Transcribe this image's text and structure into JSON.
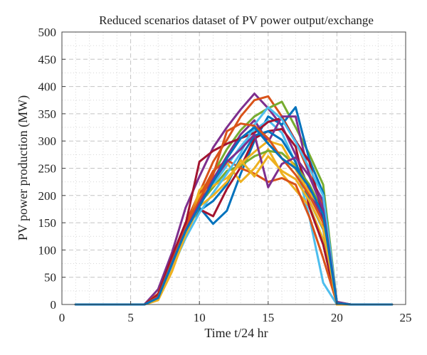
{
  "chart_data": {
    "type": "line",
    "title": "Reduced scenarios dataset of PV power output/exchange",
    "xlabel": "Time t/24 hr",
    "ylabel": "PV power production (MW)",
    "xlim": [
      0,
      25
    ],
    "ylim": [
      0,
      500
    ],
    "xticks": [
      0,
      5,
      10,
      15,
      20,
      25
    ],
    "yticks": [
      0,
      50,
      100,
      150,
      200,
      250,
      300,
      350,
      400,
      450,
      500
    ],
    "grid": true,
    "legend": "none",
    "x": [
      1,
      2,
      3,
      4,
      5,
      6,
      7,
      8,
      9,
      10,
      11,
      12,
      13,
      14,
      15,
      16,
      17,
      18,
      19,
      20,
      21,
      22,
      23,
      24
    ],
    "series": [
      {
        "color": "#7e2f8e",
        "values": [
          0,
          0,
          0,
          0,
          0,
          0,
          28,
          95,
          178,
          235,
          288,
          325,
          358,
          387,
          360,
          328,
          275,
          210,
          155,
          5,
          0,
          0,
          0,
          0
        ]
      },
      {
        "color": "#d95319",
        "values": [
          0,
          0,
          0,
          0,
          0,
          0,
          20,
          85,
          150,
          205,
          262,
          302,
          345,
          375,
          382,
          345,
          300,
          240,
          180,
          3,
          0,
          0,
          0,
          0
        ]
      },
      {
        "color": "#77ac30",
        "values": [
          0,
          0,
          0,
          0,
          0,
          0,
          12,
          75,
          138,
          190,
          240,
          285,
          320,
          345,
          360,
          372,
          325,
          275,
          220,
          4,
          0,
          0,
          0,
          0
        ]
      },
      {
        "color": "#0072bd",
        "values": [
          0,
          0,
          0,
          0,
          0,
          0,
          15,
          82,
          145,
          178,
          148,
          172,
          240,
          300,
          345,
          330,
          362,
          265,
          205,
          2,
          0,
          0,
          0,
          0
        ]
      },
      {
        "color": "#4dbeee",
        "values": [
          0,
          0,
          0,
          0,
          0,
          0,
          10,
          70,
          128,
          182,
          220,
          255,
          290,
          320,
          338,
          315,
          260,
          160,
          40,
          0,
          0,
          0,
          0,
          0
        ]
      },
      {
        "color": "#edb120",
        "values": [
          0,
          0,
          0,
          0,
          0,
          0,
          8,
          60,
          130,
          210,
          232,
          260,
          225,
          250,
          285,
          240,
          210,
          180,
          120,
          0,
          0,
          0,
          0,
          0
        ]
      },
      {
        "color": "#a2142f",
        "values": [
          0,
          0,
          0,
          0,
          0,
          0,
          18,
          88,
          150,
          175,
          162,
          212,
          252,
          305,
          318,
          322,
          290,
          178,
          110,
          0,
          0,
          0,
          0,
          0
        ]
      },
      {
        "color": "#d95319",
        "values": [
          0,
          0,
          0,
          0,
          0,
          0,
          14,
          78,
          142,
          198,
          245,
          265,
          250,
          240,
          225,
          232,
          220,
          160,
          85,
          2,
          0,
          0,
          0,
          0
        ]
      },
      {
        "color": "#7e2f8e",
        "values": [
          0,
          0,
          0,
          0,
          0,
          0,
          12,
          72,
          135,
          188,
          230,
          272,
          312,
          338,
          298,
          345,
          345,
          235,
          190,
          4,
          0,
          0,
          0,
          0
        ]
      },
      {
        "color": "#77ac30",
        "values": [
          0,
          0,
          0,
          0,
          0,
          0,
          10,
          68,
          132,
          185,
          215,
          245,
          255,
          272,
          282,
          278,
          255,
          220,
          170,
          2,
          0,
          0,
          0,
          0
        ]
      },
      {
        "color": "#0072bd",
        "values": [
          0,
          0,
          0,
          0,
          0,
          0,
          14,
          80,
          140,
          172,
          190,
          220,
          270,
          310,
          318,
          302,
          262,
          190,
          138,
          2,
          0,
          0,
          0,
          0
        ]
      },
      {
        "color": "#edb120",
        "values": [
          0,
          0,
          0,
          0,
          0,
          0,
          10,
          65,
          125,
          200,
          218,
          232,
          258,
          280,
          300,
          292,
          248,
          205,
          175,
          0,
          0,
          0,
          0,
          0
        ]
      },
      {
        "color": "#a2142f",
        "values": [
          0,
          0,
          0,
          0,
          0,
          0,
          16,
          82,
          148,
          262,
          282,
          295,
          305,
          315,
          335,
          342,
          300,
          262,
          160,
          3,
          0,
          0,
          0,
          0
        ]
      },
      {
        "color": "#4dbeee",
        "values": [
          0,
          0,
          0,
          0,
          0,
          0,
          10,
          66,
          122,
          168,
          205,
          240,
          278,
          330,
          362,
          340,
          298,
          250,
          200,
          3,
          0,
          0,
          0,
          0
        ]
      },
      {
        "color": "#d95319",
        "values": [
          0,
          0,
          0,
          0,
          0,
          0,
          14,
          78,
          140,
          192,
          238,
          318,
          332,
          328,
          305,
          268,
          238,
          200,
          150,
          2,
          0,
          0,
          0,
          0
        ]
      },
      {
        "color": "#7e2f8e",
        "values": [
          0,
          0,
          0,
          0,
          0,
          0,
          12,
          74,
          136,
          185,
          226,
          262,
          285,
          312,
          215,
          258,
          270,
          235,
          175,
          3,
          0,
          0,
          0,
          0
        ]
      },
      {
        "color": "#edb120",
        "values": [
          0,
          0,
          0,
          0,
          0,
          0,
          8,
          62,
          128,
          180,
          200,
          225,
          265,
          235,
          272,
          245,
          230,
          190,
          140,
          0,
          0,
          0,
          0,
          0
        ]
      },
      {
        "color": "#0072bd",
        "values": [
          0,
          0,
          0,
          0,
          0,
          0,
          12,
          75,
          135,
          180,
          225,
          268,
          305,
          325,
          295,
          268,
          250,
          215,
          165,
          2,
          0,
          0,
          0,
          0
        ]
      }
    ]
  }
}
